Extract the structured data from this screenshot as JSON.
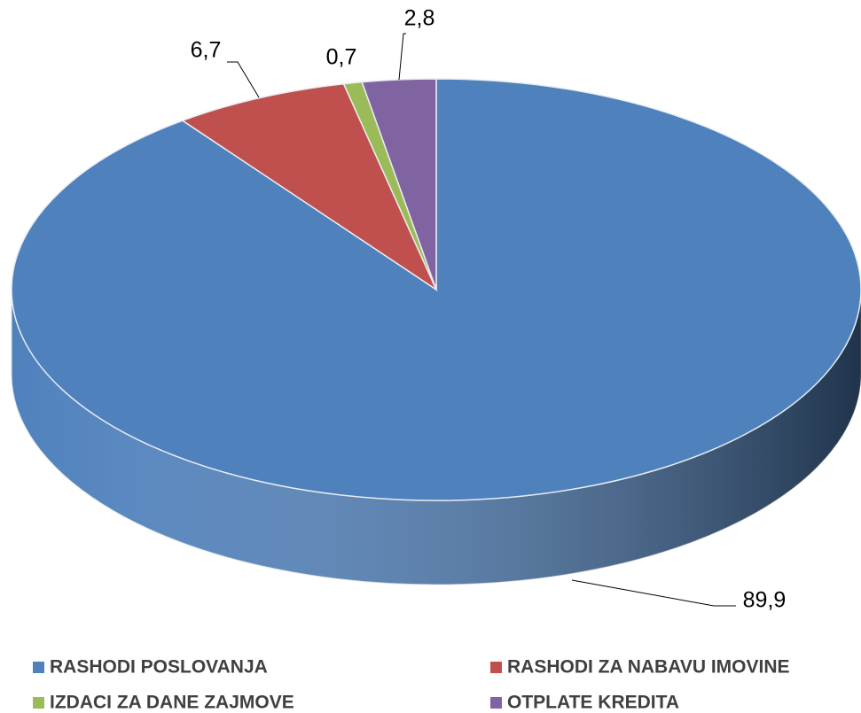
{
  "chart_data": {
    "type": "pie",
    "categories": [
      "RASHODI POSLOVANJA",
      "RASHODI ZA NABAVU IMOVINE",
      "IZDACI ZA DANE ZAJMOVE",
      "OTPLATE KREDITA"
    ],
    "values": [
      89.9,
      6.7,
      0.7,
      2.8
    ],
    "value_labels": [
      "89,9",
      "6,7",
      "0,7",
      "2,8"
    ],
    "colors": [
      "#4f81bd",
      "#c0504d",
      "#9bbb59",
      "#8064a2"
    ],
    "legend": "bottom"
  }
}
